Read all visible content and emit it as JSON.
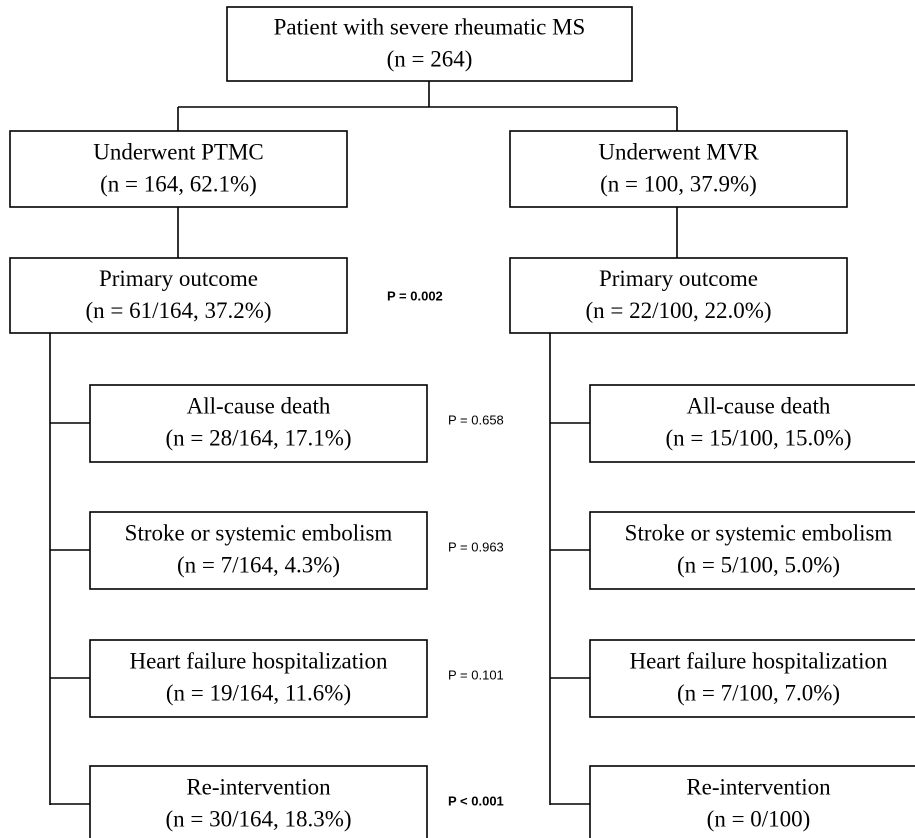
{
  "root": {
    "title": "Patient with severe rheumatic MS",
    "count": "(n = 264)"
  },
  "groups": [
    {
      "title": "Underwent PTMC",
      "count": "(n = 164, 62.1%)",
      "primary": {
        "title": "Primary outcome",
        "count": "(n = 61/164, 37.2%)"
      },
      "outcomes": [
        {
          "title": "All-cause death",
          "count": "(n = 28/164, 17.1%)"
        },
        {
          "title": "Stroke or systemic embolism",
          "count": "(n = 7/164, 4.3%)"
        },
        {
          "title": "Heart failure hospitalization",
          "count": "(n = 19/164, 11.6%)"
        },
        {
          "title": "Re-intervention",
          "count": "(n = 30/164, 18.3%)"
        }
      ]
    },
    {
      "title": "Underwent MVR",
      "count": "(n = 100, 37.9%)",
      "primary": {
        "title": "Primary outcome",
        "count": "(n = 22/100, 22.0%)"
      },
      "outcomes": [
        {
          "title": "All-cause death",
          "count": "(n = 15/100, 15.0%)"
        },
        {
          "title": "Stroke or systemic embolism",
          "count": "(n = 5/100, 5.0%)"
        },
        {
          "title": "Heart failure hospitalization",
          "count": "(n = 7/100, 7.0%)"
        },
        {
          "title": "Re-intervention",
          "count": "(n = 0/100)"
        }
      ]
    }
  ],
  "p_values": {
    "primary": "P = 0.002",
    "outcomes": [
      "P = 0.658",
      "P = 0.963",
      "P = 0.101",
      "P < 0.001"
    ]
  }
}
